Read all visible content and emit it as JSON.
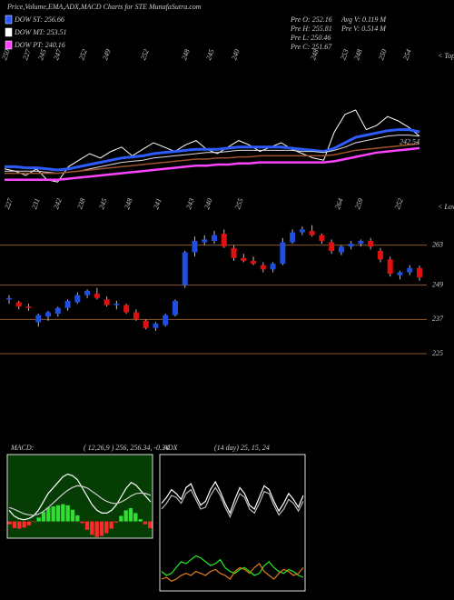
{
  "chart_data": [
    {
      "type": "line",
      "title": "Price,Volume,EMA,ADX,MACD Charts for STE MunafaSutra.com",
      "legend": [
        "DOW ST: 256.66",
        "DOW MT: 253.51",
        "DOW PT: 240.16"
      ],
      "legend_colors": [
        "#2e5bff",
        "#ffffff",
        "#ff44ff"
      ],
      "stats": [
        "Pre O: 252.16",
        "Pre H: 255.81",
        "Pre L: 250.46",
        "Pre C: 251.67",
        "Avg V: 0.119 M",
        "Pre V: 0.514 M"
      ],
      "peak_labels": [
        "250",
        "227",
        "245",
        "247",
        "252",
        "249",
        "252",
        "248",
        "245",
        "240",
        "248",
        "253",
        "248",
        "250",
        "254"
      ],
      "peak_note": "< Tops",
      "ylim": [
        225,
        275
      ],
      "series": [
        {
          "color": "#ffffff",
          "width": 1,
          "values": [
            233,
            232,
            230,
            233,
            228,
            227,
            234,
            237,
            240,
            238,
            241,
            243,
            239,
            242,
            245,
            243,
            241,
            244,
            246,
            242,
            240,
            243,
            246,
            244,
            241,
            243,
            245,
            242,
            240,
            238,
            237,
            250,
            258,
            260,
            251,
            253,
            257,
            255,
            252,
            248
          ]
        },
        {
          "color": "#2e5bff",
          "width": 3,
          "values": [
            234,
            234,
            233.5,
            233.5,
            233,
            232.5,
            233,
            234,
            235,
            236,
            237,
            238,
            238.5,
            239,
            240,
            240.5,
            241,
            241.5,
            242,
            242,
            242,
            242.5,
            243,
            243,
            243,
            243,
            243,
            242.5,
            242,
            241.5,
            241,
            242.5,
            245,
            247.5,
            248.5,
            249.5,
            250.5,
            251,
            251,
            250
          ]
        },
        {
          "color": "#dddddd",
          "width": 1,
          "values": [
            232,
            232,
            232,
            232,
            231.5,
            231,
            231.5,
            232,
            233,
            234,
            235,
            236,
            236.5,
            237,
            238,
            238.5,
            239,
            239.5,
            240,
            240.5,
            240.5,
            241,
            241.5,
            241.5,
            241.5,
            241.5,
            241.5,
            241.5,
            241,
            241,
            240.5,
            241.5,
            243,
            245,
            246,
            247,
            248,
            248.5,
            248.5,
            248
          ]
        },
        {
          "color": "#a0522d",
          "width": 1.5,
          "values": [
            231,
            231,
            231,
            231,
            231,
            231,
            231.5,
            232,
            232.5,
            233,
            233.5,
            234,
            234.5,
            235,
            235.5,
            236,
            236.5,
            237,
            237.5,
            237.5,
            238,
            238,
            238.5,
            238.5,
            239,
            239,
            239,
            239,
            239,
            239,
            239,
            239.5,
            240.5,
            241.5,
            242,
            242.5,
            243,
            243.5,
            244,
            244.5
          ]
        },
        {
          "color": "#ff44ff",
          "width": 2.5,
          "values": [
            228,
            228,
            228,
            228,
            228,
            228,
            228.5,
            229,
            229.5,
            230,
            230.5,
            231,
            231.5,
            232,
            232.5,
            233,
            233.5,
            234,
            234.5,
            234.5,
            235,
            235,
            235.5,
            235.5,
            236,
            236,
            236,
            236,
            236,
            236,
            236,
            236.5,
            237.5,
            238.5,
            239.5,
            240.5,
            241,
            241.5,
            242,
            242.54
          ]
        }
      ]
    },
    {
      "type": "candlestick",
      "trough_labels": [
        "227",
        "231",
        "242",
        "238",
        "245",
        "248",
        "241",
        "243",
        "240",
        "255",
        "264",
        "259",
        "252"
      ],
      "trough_note": "< Lows",
      "open": [
        244,
        243,
        241.5,
        236,
        238,
        239,
        241,
        243,
        245.5,
        246,
        244,
        242,
        242,
        239.5,
        236.5,
        234,
        235,
        238.5,
        249,
        260.5,
        264,
        264.5,
        267,
        262,
        258.5,
        257.5,
        256,
        254.5,
        256.5,
        264,
        267.5,
        268,
        266.5,
        264,
        260.5,
        262.5,
        263.5,
        264.5,
        261,
        258,
        252.5,
        253.5,
        255
      ],
      "high": [
        245.5,
        243.5,
        242.5,
        239,
        240,
        241.5,
        244,
        246.5,
        247.5,
        248,
        245,
        243.5,
        242.5,
        240.5,
        237,
        236,
        239,
        244,
        261,
        266,
        266.5,
        268,
        268.5,
        263,
        260,
        259,
        257,
        257,
        265.5,
        268.5,
        269.5,
        270,
        267,
        265,
        263,
        264.5,
        265,
        265.5,
        262,
        259,
        254,
        256,
        255.8
      ],
      "low": [
        242.5,
        240.5,
        240,
        234.5,
        236.5,
        238,
        240,
        242.5,
        244.5,
        244,
        241.5,
        240.5,
        239,
        236.5,
        233.5,
        233,
        234.5,
        238,
        248,
        259,
        263,
        263.5,
        262,
        257.5,
        257,
        256,
        253.5,
        253.5,
        256,
        263.5,
        266.5,
        266,
        263.5,
        260,
        259.5,
        261.5,
        262.5,
        261.5,
        257,
        252,
        251,
        252.5,
        250.5
      ],
      "close": [
        244.5,
        241.5,
        241,
        238.5,
        239.5,
        241,
        243.5,
        245.5,
        247,
        244.5,
        242,
        242.5,
        239.5,
        237,
        234,
        235.5,
        238.5,
        243.5,
        260.5,
        264.5,
        265,
        266.5,
        262.5,
        258.5,
        257.5,
        256.5,
        254.5,
        256.5,
        264,
        267.5,
        268.5,
        266.5,
        264.5,
        261,
        262.5,
        263.5,
        264.5,
        262.5,
        258,
        253,
        253.5,
        255,
        251.7
      ],
      "up_color": "#1f4fe0",
      "down_color": "#e01010",
      "ylim": [
        221.5,
        282
      ],
      "yticks": [
        263,
        249,
        237,
        225
      ],
      "grid": true,
      "grid_color": "#8b5a2b"
    },
    {
      "type": "macd",
      "title": "MACD:",
      "subtitle": "( 12,26,9 ) 256, 256.34, -0.34",
      "ylim": [
        -3,
        12
      ],
      "background": "#053d05",
      "hist_colors": [
        "#33dd33",
        "#ff2a2a"
      ],
      "histogram": [
        -0.5,
        -1.2,
        -1.3,
        -1.1,
        -0.7,
        -0.1,
        0.7,
        1.7,
        2.5,
        2.7,
        2.9,
        3.1,
        2.9,
        2.1,
        1.1,
        -0.3,
        -1.5,
        -2.4,
        -2.8,
        -2.6,
        -2.1,
        -1.3,
        -0.2,
        1,
        2,
        2.4,
        1.5,
        0.4,
        -0.5,
        -1.2
      ],
      "series": [
        {
          "color": "#ffffff",
          "values": [
            2,
            1,
            0.5,
            0.3,
            0.5,
            1,
            2,
            3.5,
            5,
            6,
            7,
            8,
            8.5,
            8.2,
            7.5,
            6,
            4.5,
            3,
            2,
            1.5,
            1.5,
            2,
            3,
            4.5,
            6,
            7,
            6.5,
            5.5,
            4.5,
            3.5
          ]
        },
        {
          "color": "#cccccc",
          "values": [
            2.5,
            2.2,
            1.8,
            1.4,
            1.2,
            1.1,
            1.3,
            1.8,
            2.5,
            3.3,
            4.1,
            4.9,
            5.6,
            6.1,
            6.4,
            6.3,
            6,
            5.4,
            4.8,
            4.1,
            3.6,
            3.3,
            3.2,
            3.5,
            4,
            4.6,
            5,
            5.1,
            5,
            4.7
          ]
        }
      ]
    },
    {
      "type": "adx",
      "title": "ADX",
      "subtitle": "(14 day) 25, 15, 24",
      "ylim": [
        0,
        70
      ],
      "background": "#000000",
      "series": [
        {
          "color": "#ffffff",
          "values": [
            45,
            48,
            52,
            50,
            47,
            53,
            55,
            49,
            44,
            46,
            52,
            56,
            51,
            45,
            40,
            47,
            53,
            50,
            44,
            42,
            48,
            54,
            52,
            46,
            41,
            45,
            50,
            47,
            43,
            49
          ]
        },
        {
          "color": "#bbbbbb",
          "values": [
            42,
            45,
            49,
            48,
            45,
            50,
            52,
            47,
            42,
            43,
            49,
            53,
            49,
            43,
            38,
            44,
            50,
            48,
            42,
            40,
            45,
            51,
            50,
            44,
            39,
            42,
            47,
            45,
            41,
            46
          ]
        },
        {
          "color": "#22ee22",
          "values": [
            10,
            8,
            9,
            12,
            15,
            14,
            16,
            18,
            17,
            15,
            13,
            14,
            16,
            12,
            10,
            9,
            11,
            12,
            10,
            8,
            9,
            13,
            15,
            12,
            10,
            9,
            11,
            10,
            8,
            7
          ]
        },
        {
          "color": "#e07b20",
          "values": [
            6,
            7,
            5,
            6,
            8,
            9,
            8,
            10,
            9,
            8,
            10,
            11,
            9,
            8,
            6,
            10,
            12,
            11,
            9,
            12,
            14,
            10,
            8,
            6,
            9,
            11,
            10,
            8,
            9,
            12
          ]
        }
      ]
    }
  ]
}
